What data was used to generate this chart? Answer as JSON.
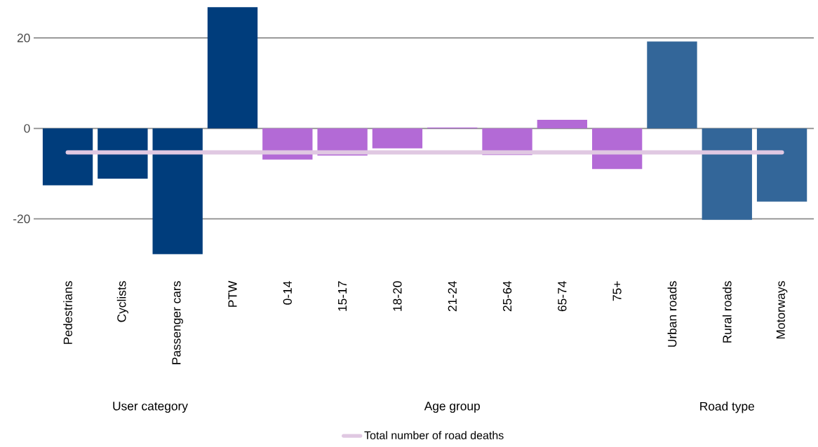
{
  "chart_data": {
    "type": "bar",
    "categories": [
      "Pedestrians",
      "Cyclists",
      "Passenger cars",
      "PTW",
      "0-14",
      "15-17",
      "18-20",
      "21-24",
      "25-64",
      "65-74",
      "75+",
      "Urban roads",
      "Rural roads",
      "Motorways"
    ],
    "series": [
      {
        "colors": [
          "#003d7c",
          "#003d7c",
          "#003d7c",
          "#003d7c",
          "#b36ad6",
          "#b36ad6",
          "#b36ad6",
          "#b36ad6",
          "#b36ad6",
          "#b36ad6",
          "#b36ad6",
          "#336699",
          "#336699",
          "#336699"
        ],
        "values": [
          -12.6,
          -11.1,
          -27.8,
          26.8,
          -6.9,
          -6.0,
          -4.4,
          0.2,
          -5.9,
          1.9,
          -9.0,
          19.2,
          -20.2,
          -16.2
        ]
      },
      {
        "type": "line",
        "name": "Total number of road deaths",
        "color": "#e0c8e2",
        "values": [
          -5.3,
          -5.3,
          -5.3,
          -5.3,
          -5.3,
          -5.3,
          -5.3,
          -5.3,
          -5.3,
          -5.3,
          -5.3,
          -5.3,
          -5.3,
          -5.3
        ]
      }
    ],
    "ylim": [
      -28,
      27
    ],
    "yticks": [
      -20,
      0,
      20
    ],
    "grid": "y",
    "legend": "bottom",
    "annotations": [
      "User category",
      "Age group",
      "Road type"
    ]
  }
}
